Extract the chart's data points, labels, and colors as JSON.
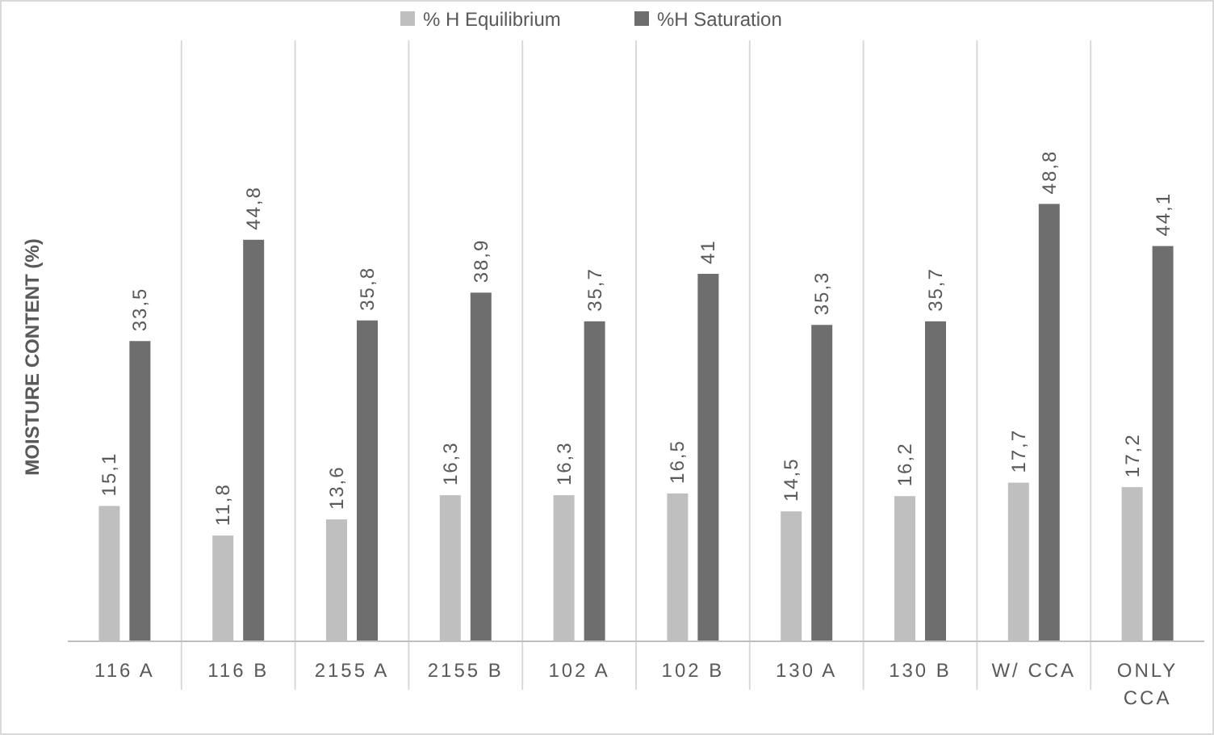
{
  "chart_data": {
    "type": "bar",
    "ylabel": "MOISTURE CONTENT (%)",
    "categories": [
      "116 A",
      "116 B",
      "2155 A",
      "2155 B",
      "102 A",
      "102 B",
      "130 A",
      "130 B",
      "W/ CCA",
      "ONLY CCA"
    ],
    "series": [
      {
        "name": "% H Equilibrium",
        "color": "#bfbfbf",
        "values": [
          15.1,
          11.8,
          13.6,
          16.3,
          16.3,
          16.5,
          14.5,
          16.2,
          17.7,
          17.2
        ],
        "value_labels": [
          "15,1",
          "11,8",
          "13,6",
          "16,3",
          "16,3",
          "16,5",
          "14,5",
          "16,2",
          "17,7",
          "17,2"
        ]
      },
      {
        "name": "%H Saturation",
        "color": "#6e6e6e",
        "values": [
          33.5,
          44.8,
          35.8,
          38.9,
          35.7,
          41,
          35.3,
          35.7,
          48.8,
          44.1
        ],
        "value_labels": [
          "33,5",
          "44,8",
          "35,8",
          "38,9",
          "35,7",
          "41",
          "35,3",
          "35,7",
          "48,8",
          "44,1"
        ]
      }
    ],
    "grid": "x",
    "legend": "top",
    "tick_labels": "x"
  }
}
